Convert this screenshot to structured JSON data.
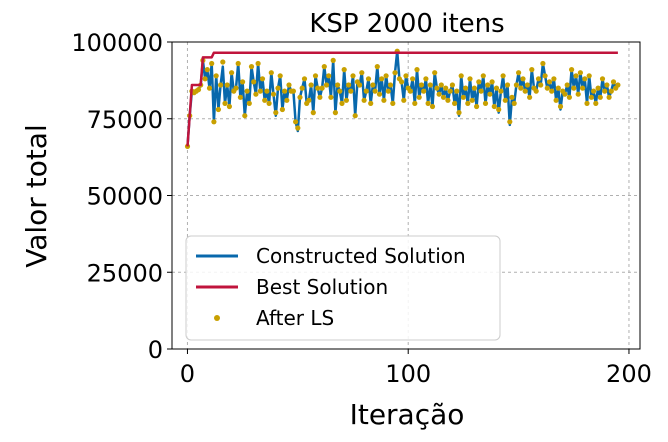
{
  "chart_data": {
    "type": "line",
    "title": "KSP 2000 itens",
    "xlabel": "Iteração",
    "ylabel": "Valor total",
    "xlim": [
      -7,
      205
    ],
    "ylim": [
      0,
      100000
    ],
    "xticks": [
      0,
      100,
      200
    ],
    "yticks": [
      0,
      25000,
      50000,
      75000,
      100000
    ],
    "x_tick_labels": [
      "0",
      "100",
      "200"
    ],
    "y_tick_labels": [
      "0",
      "25000",
      "50000",
      "75000",
      "100000"
    ],
    "grid": true,
    "legend_position": "lower-left",
    "x": [
      0,
      1,
      2,
      3,
      4,
      5,
      6,
      7,
      8,
      9,
      10,
      11,
      12,
      13,
      14,
      15,
      16,
      17,
      18,
      19,
      20,
      21,
      22,
      23,
      24,
      25,
      26,
      27,
      28,
      29,
      30,
      31,
      32,
      33,
      34,
      35,
      36,
      37,
      38,
      39,
      40,
      41,
      42,
      43,
      44,
      45,
      46,
      47,
      48,
      49,
      50,
      51,
      52,
      53,
      54,
      55,
      56,
      57,
      58,
      59,
      60,
      61,
      62,
      63,
      64,
      65,
      66,
      67,
      68,
      69,
      70,
      71,
      72,
      73,
      74,
      75,
      76,
      77,
      78,
      79,
      80,
      81,
      82,
      83,
      84,
      85,
      86,
      87,
      88,
      89,
      90,
      91,
      92,
      93,
      94,
      95,
      96,
      97,
      98,
      99,
      100,
      101,
      102,
      103,
      104,
      105,
      106,
      107,
      108,
      109,
      110,
      111,
      112,
      113,
      114,
      115,
      116,
      117,
      118,
      119,
      120,
      121,
      122,
      123,
      124,
      125,
      126,
      127,
      128,
      129,
      130,
      131,
      132,
      133,
      134,
      135,
      136,
      137,
      138,
      139,
      140,
      141,
      142,
      143,
      144,
      145,
      146,
      147,
      148,
      149,
      150,
      151,
      152,
      153,
      154,
      155,
      156,
      157,
      158,
      159,
      160,
      161,
      162,
      163,
      164,
      165,
      166,
      167,
      168,
      169,
      170,
      171,
      172,
      173,
      174,
      175,
      176,
      177,
      178,
      179,
      180,
      181,
      182,
      183,
      184,
      185,
      186,
      187,
      188,
      189,
      190,
      191,
      192,
      193,
      194,
      195
    ],
    "series": [
      {
        "name": "Constructed Solution",
        "style": "line",
        "color": "#0868ac",
        "values": [
          66000,
          76000,
          84000,
          83500,
          84000,
          84500,
          86000,
          94000,
          88000,
          91000,
          85000,
          93000,
          74000,
          89000,
          78000,
          86000,
          92000,
          80000,
          86000,
          79000,
          90000,
          84000,
          85000,
          93000,
          82000,
          87000,
          76000,
          84000,
          80000,
          92000,
          87000,
          83000,
          93000,
          84000,
          88000,
          81000,
          84000,
          80000,
          90000,
          83000,
          76000,
          85000,
          89000,
          78000,
          84000,
          81000,
          86000,
          84000,
          84000,
          74000,
          71000,
          82000,
          85000,
          88000,
          80000,
          81000,
          86000,
          77000,
          89000,
          85000,
          82000,
          85000,
          92000,
          86000,
          89000,
          82000,
          94000,
          77000,
          86000,
          84000,
          80000,
          91000,
          81000,
          86000,
          84000,
          89000,
          76000,
          87000,
          86000,
          90000,
          81000,
          84000,
          88000,
          80000,
          86000,
          84000,
          92000,
          83000,
          88000,
          81000,
          89000,
          84000,
          86000,
          80000,
          90000,
          97000,
          88000,
          87000,
          81000,
          89000,
          85000,
          84000,
          88000,
          80000,
          91000,
          82000,
          86000,
          84000,
          88000,
          80000,
          86000,
          79000,
          90000,
          85000,
          83000,
          86000,
          82000,
          85000,
          81000,
          84000,
          86000,
          80000,
          84000,
          76000,
          89000,
          82000,
          85000,
          80000,
          88000,
          81000,
          85000,
          79000,
          87000,
          84000,
          89000,
          80000,
          86000,
          83000,
          87000,
          79000,
          85000,
          77000,
          84000,
          89000,
          81000,
          86000,
          73000,
          82000,
          80000,
          86000,
          90000,
          85000,
          88000,
          84000,
          86000,
          82000,
          91000,
          85000,
          84000,
          88000,
          86000,
          93000,
          89000,
          85000,
          87000,
          84000,
          88000,
          81000,
          85000,
          78000,
          84000,
          83000,
          86000,
          82000,
          91000,
          85000,
          89000,
          83000,
          90000,
          85000,
          88000,
          80000,
          89000,
          82000,
          84000,
          80000,
          85000,
          82000,
          88000,
          84000,
          86000,
          82000,
          84000,
          87000,
          85000,
          86000
        ]
      },
      {
        "name": "Best Solution",
        "style": "line",
        "color": "#c0143c",
        "values": [
          66000,
          76000,
          86000,
          86000,
          86000,
          86000,
          86000,
          95000,
          95000,
          95000,
          95000,
          95000,
          96500,
          96500,
          96500,
          96500,
          96500,
          96500,
          96500,
          96500,
          96500,
          96500,
          96500,
          96500,
          96500,
          96500,
          96500,
          96500,
          96500,
          96500,
          96500,
          96500,
          96500,
          96500,
          96500,
          96500,
          96500,
          96500,
          96500,
          96500,
          96500,
          96500,
          96500,
          96500,
          96500,
          96500,
          96500,
          96500,
          96500,
          96500,
          96500,
          96500,
          96500,
          96500,
          96500,
          96500,
          96500,
          96500,
          96500,
          96500,
          96500,
          96500,
          96500,
          96500,
          96500,
          96500,
          96500,
          96500,
          96500,
          96500,
          96500,
          96500,
          96500,
          96500,
          96500,
          96500,
          96500,
          96500,
          96500,
          96500,
          96500,
          96500,
          96500,
          96500,
          96500,
          96500,
          96500,
          96500,
          96500,
          96500,
          96500,
          96500,
          96500,
          96500,
          96500,
          96500,
          96500,
          96500,
          96500,
          96500,
          96500,
          96500,
          96500,
          96500,
          96500,
          96500,
          96500,
          96500,
          96500,
          96500,
          96500,
          96500,
          96500,
          96500,
          96500,
          96500,
          96500,
          96500,
          96500,
          96500,
          96500,
          96500,
          96500,
          96500,
          96500,
          96500,
          96500,
          96500,
          96500,
          96500,
          96500,
          96500,
          96500,
          96500,
          96500,
          96500,
          96500,
          96500,
          96500,
          96500,
          96500,
          96500,
          96500,
          96500,
          96500,
          96500,
          96500,
          96500,
          96500,
          96500,
          96500,
          96500,
          96500,
          96500,
          96500,
          96500,
          96500,
          96500,
          96500,
          96500,
          96500,
          96500,
          96500,
          96500,
          96500,
          96500,
          96500,
          96500,
          96500,
          96500,
          96500,
          96500,
          96500,
          96500,
          96500,
          96500,
          96500,
          96500,
          96500,
          96500,
          96500,
          96500,
          96500,
          96500,
          96500,
          96500,
          96500,
          96500,
          96500,
          96500,
          96500,
          96500,
          96500,
          96500,
          96500,
          96500
        ]
      },
      {
        "name": "After LS",
        "style": "markers",
        "color": "#c8a000",
        "values": [
          66000,
          76000,
          84000,
          83500,
          84000,
          84500,
          86000,
          94000,
          88000,
          91000,
          85000,
          93000,
          74000,
          89000,
          78000,
          86000,
          93500,
          80000,
          86000,
          79000,
          90000,
          84000,
          85000,
          93000,
          82000,
          87000,
          76000,
          84000,
          80000,
          92000,
          87000,
          83000,
          93000,
          84000,
          88000,
          81000,
          84000,
          80000,
          90000,
          83000,
          77000,
          85000,
          89000,
          78000,
          84000,
          81000,
          86000,
          84000,
          84000,
          74000,
          72000,
          82000,
          85000,
          88000,
          80000,
          81000,
          86000,
          77000,
          89000,
          85000,
          82000,
          85000,
          92000,
          86000,
          89000,
          82000,
          94000,
          77000,
          86000,
          84000,
          80000,
          91000,
          81000,
          86000,
          84000,
          89000,
          76000,
          87000,
          86000,
          90000,
          81000,
          84000,
          88000,
          80000,
          86000,
          84000,
          92000,
          83000,
          88000,
          81000,
          89000,
          84000,
          86000,
          80000,
          90000,
          97000,
          88000,
          87000,
          81000,
          89000,
          85000,
          84000,
          88000,
          80000,
          91000,
          82000,
          86000,
          84000,
          88000,
          80000,
          86000,
          79000,
          90000,
          85000,
          83000,
          86000,
          82000,
          85000,
          81000,
          84000,
          86000,
          80000,
          84000,
          77000,
          89000,
          82000,
          85000,
          80000,
          88000,
          81000,
          85000,
          79000,
          87000,
          84000,
          89000,
          80000,
          86000,
          83000,
          87000,
          79000,
          85000,
          78000,
          84000,
          89000,
          81000,
          86000,
          74000,
          82000,
          80000,
          86000,
          90000,
          85000,
          88000,
          84000,
          86000,
          82000,
          91000,
          85000,
          84000,
          88000,
          86000,
          93000,
          89000,
          85000,
          87000,
          84000,
          88000,
          81000,
          85000,
          79000,
          84000,
          83000,
          86000,
          82000,
          91000,
          85000,
          89000,
          83000,
          90000,
          85000,
          88000,
          80000,
          89000,
          82000,
          84000,
          80000,
          85000,
          82000,
          88000,
          84000,
          86000,
          82000,
          84000,
          87000,
          85000,
          86000
        ]
      }
    ]
  }
}
